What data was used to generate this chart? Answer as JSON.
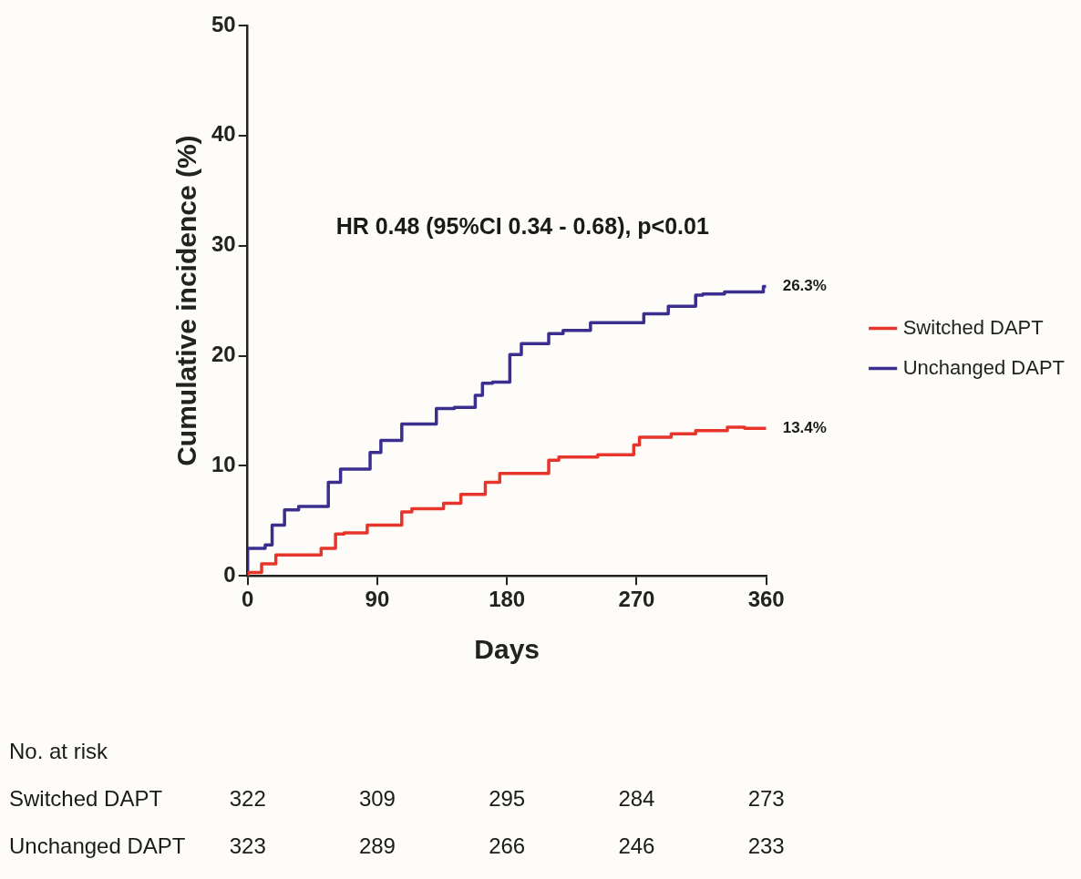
{
  "chart_data": {
    "type": "step",
    "xlabel": "Days",
    "ylabel": "Cumulative incidence (%)",
    "xlim": [
      0,
      360
    ],
    "xticks": [
      0,
      90,
      180,
      270,
      360
    ],
    "ylim": [
      0,
      50
    ],
    "yticks": [
      0,
      10,
      20,
      30,
      40,
      50
    ],
    "legend": "right",
    "marker": "none",
    "line_style": "solid",
    "series": [
      {
        "name": "Switched DAPT",
        "color": "#e8352b",
        "x": [
          0,
          9.7,
          19.6,
          30.5,
          51,
          61,
          67,
          83,
          95,
          107,
          114,
          136,
          148,
          165,
          175,
          190,
          209,
          216,
          243,
          268,
          272,
          294,
          311,
          333,
          345,
          360
        ],
        "values": [
          0,
          0.3,
          1.1,
          1.9,
          1.9,
          2.5,
          3.8,
          3.9,
          4.6,
          4.6,
          5.8,
          6.1,
          6.6,
          7.4,
          8.5,
          9.3,
          9.3,
          10.5,
          10.8,
          11,
          11.9,
          12.6,
          12.9,
          13.2,
          13.5,
          13.4
        ]
      },
      {
        "name": "Unchanged DAPT",
        "color": "#3a2f8f",
        "x": [
          0,
          12.2,
          17,
          25.6,
          35.4,
          56,
          64.5,
          73,
          85,
          92.5,
          107,
          131,
          143.5,
          158,
          163,
          170,
          182,
          190,
          195,
          209,
          219,
          238,
          255,
          275,
          292,
          311,
          316,
          331,
          358,
          360
        ],
        "values": [
          0,
          2.5,
          2.8,
          4.6,
          6,
          6.3,
          8.5,
          9.7,
          9.7,
          11.2,
          12.3,
          13.8,
          15.2,
          15.3,
          16.4,
          17.5,
          17.6,
          20.1,
          21.1,
          21.1,
          22,
          22.3,
          23,
          23,
          23.8,
          24.5,
          25.5,
          25.6,
          25.8,
          26.3
        ]
      }
    ],
    "annotations": [
      "HR 0.48 (95%CI 0.34 - 0.68), p<0.01",
      {
        "text": "26.3%",
        "x": 360,
        "y": 26.3
      },
      {
        "text": "13.4%",
        "x": 360,
        "y": 13.4
      },
      "No. at risk",
      "Switched DAPT\t322\t309\t295\t284\t273",
      "Unchanged DAPT\t323\t289\t266\t246\t233"
    ]
  }
}
